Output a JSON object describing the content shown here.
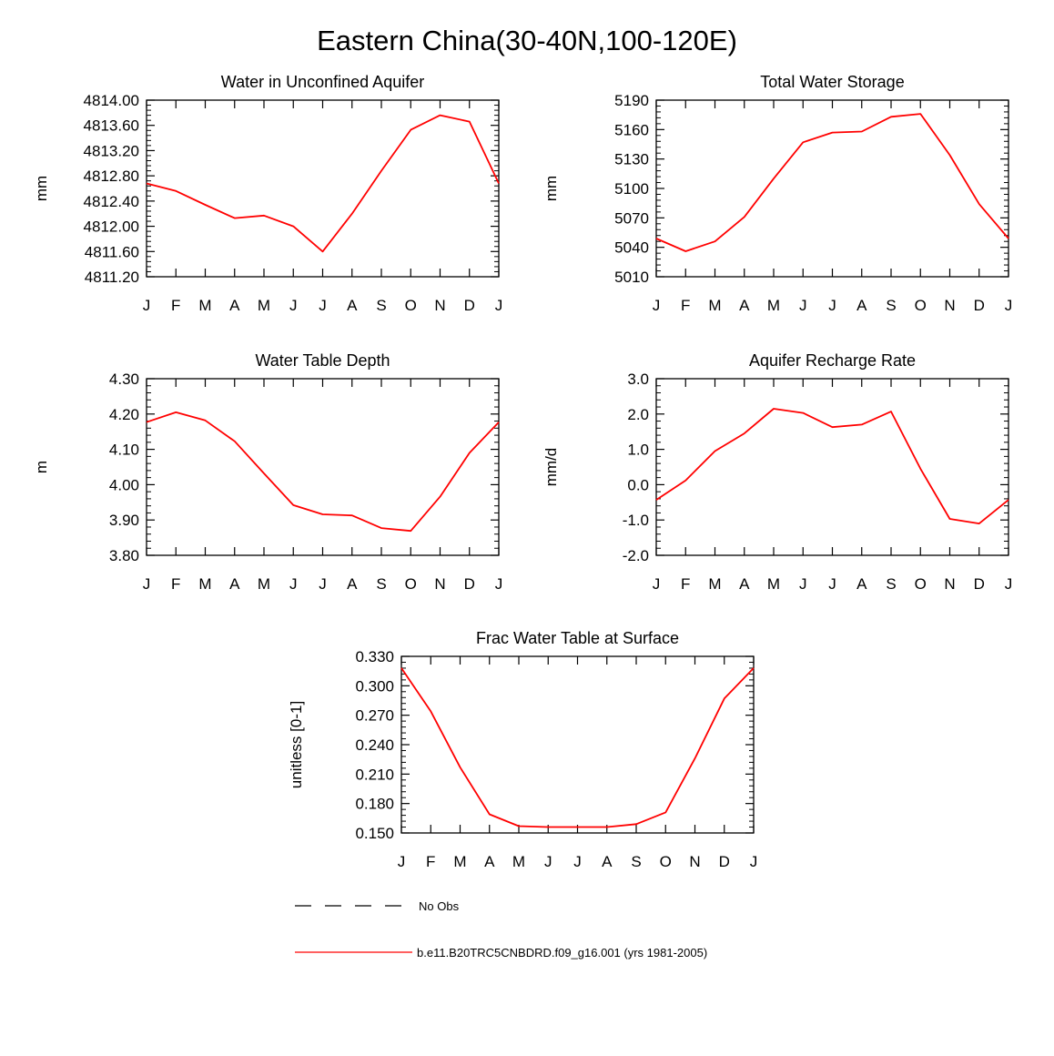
{
  "title": "Eastern China(30-40N,100-120E)",
  "months": [
    "J",
    "F",
    "M",
    "A",
    "M",
    "J",
    "J",
    "A",
    "S",
    "O",
    "N",
    "D",
    "J"
  ],
  "legend": {
    "obs_label": "No Obs",
    "model_label": "b.e11.B20TRC5CNBDRD.f09_g16.001 (yrs 1981-2005)",
    "model_color": "#ff0000",
    "obs_color": "#000000"
  },
  "chart_data": [
    {
      "type": "line",
      "title": "Water in Unconfined Aquifer",
      "ylabel": "mm",
      "xlabel": "",
      "categories": [
        "J",
        "F",
        "M",
        "A",
        "M",
        "J",
        "J",
        "A",
        "S",
        "O",
        "N",
        "D",
        "J"
      ],
      "ylim": [
        4811.2,
        4814.0
      ],
      "yticks": [
        4811.2,
        4811.6,
        4812.0,
        4812.4,
        4812.8,
        4813.2,
        4813.6,
        4814.0
      ],
      "ytick_labels": [
        "4811.20",
        "4811.60",
        "4812.00",
        "4812.40",
        "4812.80",
        "4813.20",
        "4813.60",
        "4814.00"
      ],
      "series": [
        {
          "name": "b.e11.B20TRC5CNBDRD.f09_g16.001 (yrs 1981-2005)",
          "color": "#ff0000",
          "values": [
            4812.68,
            4812.56,
            4812.34,
            4812.13,
            4812.17,
            4812.0,
            4811.6,
            4812.2,
            4812.88,
            4813.53,
            4813.76,
            4813.66,
            4812.68
          ]
        }
      ]
    },
    {
      "type": "line",
      "title": "Total Water Storage",
      "ylabel": "mm",
      "xlabel": "",
      "categories": [
        "J",
        "F",
        "M",
        "A",
        "M",
        "J",
        "J",
        "A",
        "S",
        "O",
        "N",
        "D",
        "J"
      ],
      "ylim": [
        5010,
        5190
      ],
      "yticks": [
        5010,
        5040,
        5070,
        5100,
        5130,
        5160,
        5190
      ],
      "ytick_labels": [
        "5010",
        "5040",
        "5070",
        "5100",
        "5130",
        "5160",
        "5190"
      ],
      "series": [
        {
          "name": "b.e11.B20TRC5CNBDRD.f09_g16.001 (yrs 1981-2005)",
          "color": "#ff0000",
          "values": [
            5049,
            5036,
            5046,
            5071,
            5110,
            5147,
            5157,
            5158,
            5173,
            5176,
            5134,
            5084,
            5049
          ]
        }
      ]
    },
    {
      "type": "line",
      "title": "Water Table Depth",
      "ylabel": "m",
      "xlabel": "",
      "categories": [
        "J",
        "F",
        "M",
        "A",
        "M",
        "J",
        "J",
        "A",
        "S",
        "O",
        "N",
        "D",
        "J"
      ],
      "ylim": [
        3.8,
        4.3
      ],
      "yticks": [
        3.8,
        3.9,
        4.0,
        4.1,
        4.2,
        4.3
      ],
      "ytick_labels": [
        "3.80",
        "3.90",
        "4.00",
        "4.10",
        "4.20",
        "4.30"
      ],
      "series": [
        {
          "name": "b.e11.B20TRC5CNBDRD.f09_g16.001 (yrs 1981-2005)",
          "color": "#ff0000",
          "values": [
            4.177,
            4.205,
            4.182,
            4.123,
            4.032,
            3.942,
            3.916,
            3.913,
            3.877,
            3.869,
            3.966,
            4.09,
            4.177
          ]
        }
      ]
    },
    {
      "type": "line",
      "title": "Aquifer Recharge Rate",
      "ylabel": "mm/d",
      "xlabel": "",
      "categories": [
        "J",
        "F",
        "M",
        "A",
        "M",
        "J",
        "J",
        "A",
        "S",
        "O",
        "N",
        "D",
        "J"
      ],
      "ylim": [
        -2.0,
        3.0
      ],
      "yticks": [
        -2.0,
        -1.0,
        0.0,
        1.0,
        2.0,
        3.0
      ],
      "ytick_labels": [
        "-2.0",
        "-1.0",
        "0.0",
        "1.0",
        "2.0",
        "3.0"
      ],
      "series": [
        {
          "name": "b.e11.B20TRC5CNBDRD.f09_g16.001 (yrs 1981-2005)",
          "color": "#ff0000",
          "values": [
            -0.43,
            0.12,
            0.95,
            1.45,
            2.15,
            2.03,
            1.63,
            1.7,
            2.07,
            0.45,
            -0.97,
            -1.1,
            -0.43
          ]
        }
      ]
    },
    {
      "type": "line",
      "title": "Frac Water Table at Surface",
      "ylabel": "unitless [0-1]",
      "xlabel": "",
      "categories": [
        "J",
        "F",
        "M",
        "A",
        "M",
        "J",
        "J",
        "A",
        "S",
        "O",
        "N",
        "D",
        "J"
      ],
      "ylim": [
        0.15,
        0.33
      ],
      "yticks": [
        0.15,
        0.18,
        0.21,
        0.24,
        0.27,
        0.3,
        0.33
      ],
      "ytick_labels": [
        "0.150",
        "0.180",
        "0.210",
        "0.240",
        "0.270",
        "0.300",
        "0.330"
      ],
      "series": [
        {
          "name": "b.e11.B20TRC5CNBDRD.f09_g16.001 (yrs 1981-2005)",
          "color": "#ff0000",
          "values": [
            0.318,
            0.274,
            0.217,
            0.169,
            0.157,
            0.156,
            0.156,
            0.156,
            0.159,
            0.171,
            0.226,
            0.287,
            0.318
          ]
        }
      ]
    }
  ]
}
